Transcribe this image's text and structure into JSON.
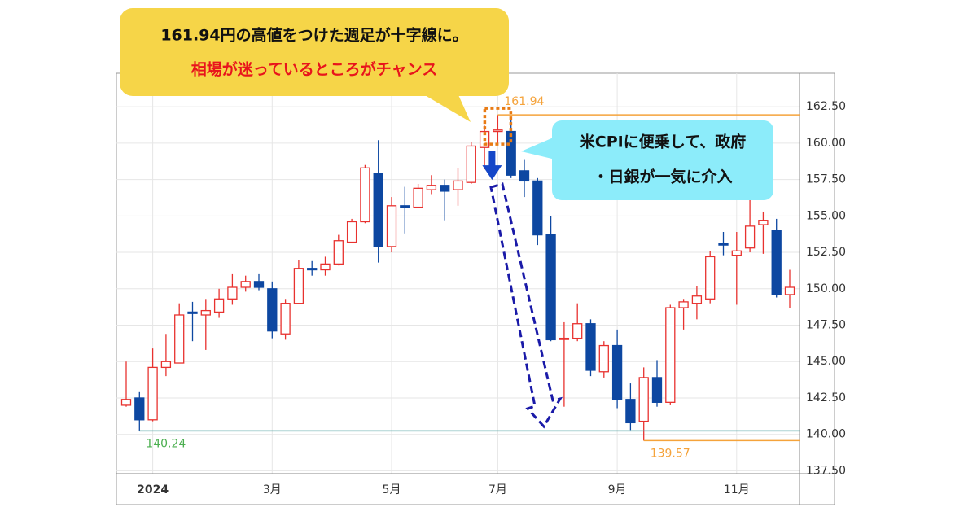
{
  "chart_data": {
    "type": "candlestick",
    "categories": [
      null,
      null,
      "2024",
      null,
      null,
      null,
      null,
      null,
      null,
      null,
      null,
      "3月",
      null,
      null,
      null,
      null,
      null,
      null,
      null,
      null,
      "5月",
      null,
      null,
      null,
      null,
      null,
      null,
      null,
      "7月",
      null,
      null,
      null,
      null,
      null,
      null,
      null,
      null,
      "9月",
      null,
      null,
      null,
      null,
      null,
      null,
      null,
      null,
      "11月",
      null,
      null,
      null,
      null
    ],
    "open": [
      142.0,
      142.5,
      141.0,
      144.6,
      144.9,
      148.4,
      148.2,
      148.4,
      149.3,
      150.1,
      150.5,
      150.0,
      146.9,
      149.0,
      151.4,
      151.3,
      151.7,
      153.2,
      154.6,
      157.9,
      152.9,
      155.7,
      155.6,
      156.8,
      157.1,
      156.8,
      157.3,
      159.7,
      160.8,
      160.8,
      158.1,
      157.4,
      153.7,
      146.6,
      146.6,
      147.6,
      144.3,
      146.1,
      142.4,
      140.9,
      143.9,
      142.2,
      148.7,
      149.0,
      149.3,
      153.1,
      152.3,
      152.8,
      154.4,
      154.0,
      149.6
    ],
    "high": [
      145.0,
      142.9,
      145.9,
      146.9,
      149.0,
      149.1,
      149.3,
      150.0,
      151.0,
      150.9,
      151.0,
      150.5,
      149.3,
      152.0,
      151.9,
      152.2,
      153.7,
      154.8,
      158.5,
      160.2,
      156.3,
      157.0,
      157.2,
      157.8,
      157.5,
      158.3,
      160.1,
      161.2,
      161.94,
      161.7,
      158.9,
      157.6,
      155.0,
      147.7,
      149.0,
      147.9,
      146.4,
      147.2,
      143.5,
      144.6,
      145.1,
      148.9,
      149.3,
      150.2,
      152.6,
      153.9,
      153.9,
      156.3,
      155.3,
      154.8,
      151.3
    ],
    "low": [
      141.9,
      140.24,
      140.9,
      144.0,
      144.9,
      146.4,
      145.8,
      148.0,
      148.9,
      149.8,
      149.9,
      146.6,
      146.5,
      149.0,
      150.9,
      150.9,
      151.6,
      153.2,
      154.5,
      151.8,
      152.5,
      153.8,
      155.6,
      156.5,
      154.7,
      155.7,
      157.2,
      158.2,
      160.0,
      157.6,
      156.3,
      153.0,
      146.4,
      141.9,
      146.4,
      144.0,
      143.9,
      141.8,
      140.3,
      139.57,
      141.9,
      142.0,
      147.2,
      147.9,
      149.0,
      152.3,
      148.9,
      152.5,
      152.4,
      149.4,
      148.7
    ],
    "close": [
      142.4,
      141.0,
      144.6,
      145.0,
      148.2,
      148.3,
      148.5,
      149.3,
      150.1,
      150.5,
      150.1,
      147.1,
      149.0,
      151.4,
      151.3,
      151.7,
      153.3,
      154.6,
      158.3,
      152.9,
      155.7,
      155.6,
      156.9,
      157.1,
      156.7,
      157.4,
      159.8,
      160.8,
      160.9,
      157.8,
      157.4,
      153.7,
      146.5,
      146.6,
      147.6,
      144.4,
      146.1,
      142.4,
      140.8,
      143.9,
      142.2,
      148.7,
      149.1,
      149.5,
      152.2,
      153.0,
      152.6,
      154.3,
      154.7,
      149.6,
      150.1
    ],
    "up_color": "#e8322f",
    "down_color": "#0d47a1",
    "ylim": [
      137.3,
      164.8
    ],
    "yticks": [
      {
        "value": 137.5,
        "label": "137.50"
      },
      {
        "value": 140,
        "label": "140.00"
      },
      {
        "value": 142.5,
        "label": "142.50"
      },
      {
        "value": 145,
        "label": "145.00"
      },
      {
        "value": 147.5,
        "label": "147.50"
      },
      {
        "value": 150,
        "label": "150.00"
      },
      {
        "value": 152.5,
        "label": "152.50"
      },
      {
        "value": 155,
        "label": "155.00"
      },
      {
        "value": 157.5,
        "label": "157.50"
      },
      {
        "value": 160,
        "label": "160.00"
      },
      {
        "value": 162.5,
        "label": "162.50"
      }
    ],
    "grid": true,
    "reference_lines": [
      {
        "value": 161.94,
        "color": "#f5a33b",
        "label_color": "#f5a33b"
      },
      {
        "value": 140.24,
        "color": "#5aa6a6",
        "label_color": "#4caf50"
      },
      {
        "value": 139.57,
        "color": "#f5a33b",
        "label_color": "#f5a33b"
      }
    ],
    "callouts": [
      {
        "lines": [
          "161.94円の高値をつけた週足が十字線に。",
          "相場が迷っているところがチャンス"
        ]
      },
      {
        "lines": [
          "米CPIに便乗して、政府",
          "・日銀が一気に介入"
        ]
      }
    ]
  }
}
